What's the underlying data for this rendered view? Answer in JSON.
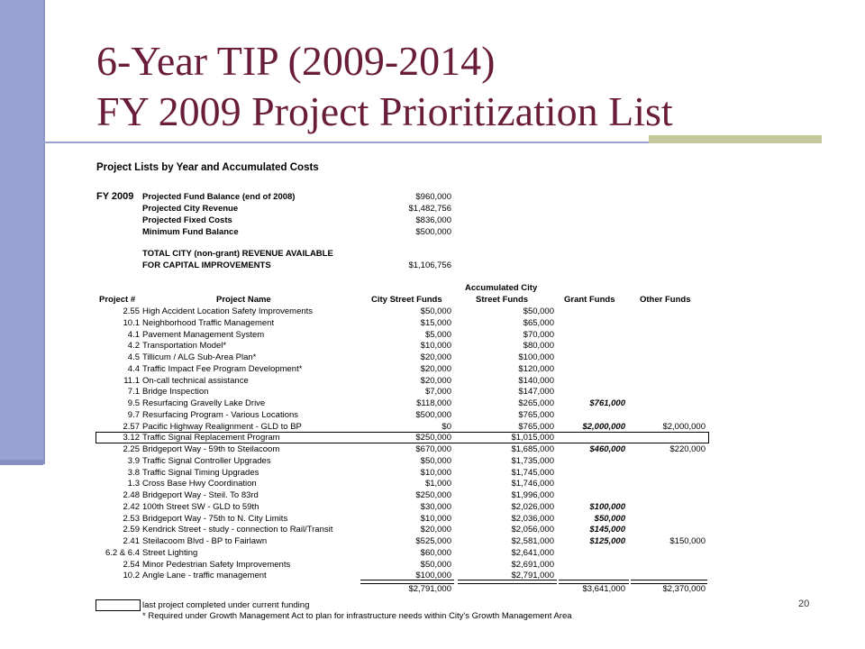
{
  "title_line1": "6-Year TIP (2009-2014)",
  "title_line2": "FY 2009 Project Prioritization List",
  "doc_heading": "Project Lists by Year and Accumulated Costs",
  "fy_label": "FY 2009",
  "summary": [
    {
      "label": "Projected Fund Balance (end of 2008)",
      "value": "$960,000"
    },
    {
      "label": "Projected City Revenue",
      "value": "$1,482,756"
    },
    {
      "label": "Projected Fixed Costs",
      "value": "$836,000"
    },
    {
      "label": "Minimum Fund Balance",
      "value": "$500,000"
    }
  ],
  "total_label_1": "TOTAL CITY (non-grant) REVENUE AVAILABLE",
  "total_label_2": "FOR CAPITAL IMPROVEMENTS",
  "total_value": "$1,106,756",
  "headers": {
    "project_num": "Project #",
    "project_name": "Project Name",
    "city_funds": "City Street Funds",
    "accum_1": "Accumulated City",
    "accum_2": "Street Funds",
    "grant": "Grant Funds",
    "other": "Other Funds"
  },
  "rows": [
    {
      "num": "2.55",
      "name": "High Accident Location Safety Improvements",
      "city": "$50,000",
      "accum": "$50,000",
      "grant": "",
      "other": ""
    },
    {
      "num": "10.1",
      "name": "Neighborhood Traffic Management",
      "city": "$15,000",
      "accum": "$65,000",
      "grant": "",
      "other": ""
    },
    {
      "num": "4.1",
      "name": "Pavement Management System",
      "city": "$5,000",
      "accum": "$70,000",
      "grant": "",
      "other": ""
    },
    {
      "num": "4.2",
      "name": "Transportation Model*",
      "city": "$10,000",
      "accum": "$80,000",
      "grant": "",
      "other": ""
    },
    {
      "num": "4.5",
      "name": "Tillicum / ALG Sub-Area Plan*",
      "city": "$20,000",
      "accum": "$100,000",
      "grant": "",
      "other": ""
    },
    {
      "num": "4.4",
      "name": "Traffic Impact Fee Program Development*",
      "city": "$20,000",
      "accum": "$120,000",
      "grant": "",
      "other": ""
    },
    {
      "num": "11.1",
      "name": "On-call technical assistance",
      "city": "$20,000",
      "accum": "$140,000",
      "grant": "",
      "other": ""
    },
    {
      "num": "7.1",
      "name": "Bridge Inspection",
      "city": "$7,000",
      "accum": "$147,000",
      "grant": "",
      "other": ""
    },
    {
      "num": "9.5",
      "name": "Resurfacing Gravelly Lake Drive",
      "city": "$118,000",
      "accum": "$265,000",
      "grant": "$761,000",
      "other": ""
    },
    {
      "num": "9.7",
      "name": "Resurfacing Program - Various Locations",
      "city": "$500,000",
      "accum": "$765,000",
      "grant": "",
      "other": ""
    },
    {
      "num": "2.57",
      "name": "Pacific Highway Realignment - GLD to BP",
      "city": "$0",
      "accum": "$765,000",
      "grant": "$2,000,000",
      "other": "$2,000,000"
    },
    {
      "num": "3.12",
      "name": "Traffic Signal Replacement Program",
      "city": "$250,000",
      "accum": "$1,015,000",
      "grant": "",
      "other": ""
    },
    {
      "num": "2.25",
      "name": "Bridgeport Way - 59th to Steilacoom",
      "city": "$670,000",
      "accum": "$1,685,000",
      "grant": "$460,000",
      "other": "$220,000"
    },
    {
      "num": "3.9",
      "name": "Traffic Signal Controller Upgrades",
      "city": "$50,000",
      "accum": "$1,735,000",
      "grant": "",
      "other": ""
    },
    {
      "num": "3.8",
      "name": "Traffic Signal Timing Upgrades",
      "city": "$10,000",
      "accum": "$1,745,000",
      "grant": "",
      "other": ""
    },
    {
      "num": "1.3",
      "name": "Cross Base Hwy Coordination",
      "city": "$1,000",
      "accum": "$1,746,000",
      "grant": "",
      "other": ""
    },
    {
      "num": "2.48",
      "name": "Bridgeport Way - Steil. To 83rd",
      "city": "$250,000",
      "accum": "$1,996,000",
      "grant": "",
      "other": ""
    },
    {
      "num": "2.42",
      "name": "100th Street SW - GLD to 59th",
      "city": "$30,000",
      "accum": "$2,026,000",
      "grant": "$100,000",
      "other": ""
    },
    {
      "num": "2.53",
      "name": "Bridgeport Way - 75th to N. City Limits",
      "city": "$10,000",
      "accum": "$2,036,000",
      "grant": "$50,000",
      "other": ""
    },
    {
      "num": "2.59",
      "name": "Kendrick Street - study - connection to Rail/Transit",
      "city": "$20,000",
      "accum": "$2,056,000",
      "grant": "$145,000",
      "other": ""
    },
    {
      "num": "2.41",
      "name": "Steilacoom Blvd - BP to Fairlawn",
      "city": "$525,000",
      "accum": "$2,581,000",
      "grant": "$125,000",
      "other": "$150,000"
    },
    {
      "num": "6.2 & 6.4",
      "name": "Street Lighting",
      "city": "$60,000",
      "accum": "$2,641,000",
      "grant": "",
      "other": ""
    },
    {
      "num": "2.54",
      "name": "Minor Pedestrian Safety Improvements",
      "city": "$50,000",
      "accum": "$2,691,000",
      "grant": "",
      "other": ""
    },
    {
      "num": "10.2",
      "name": "Angle Lane - traffic management",
      "city": "$100,000",
      "accum": "$2,791,000",
      "grant": "",
      "other": ""
    }
  ],
  "totals": {
    "city": "$2,791,000",
    "grant": "$3,641,000",
    "other": "$2,370,000"
  },
  "legend_text": "last project completed under current funding",
  "footnote": "* Required under Growth Management Act to plan for infrastructure needs within City's Growth Management Area",
  "page_number": "20"
}
